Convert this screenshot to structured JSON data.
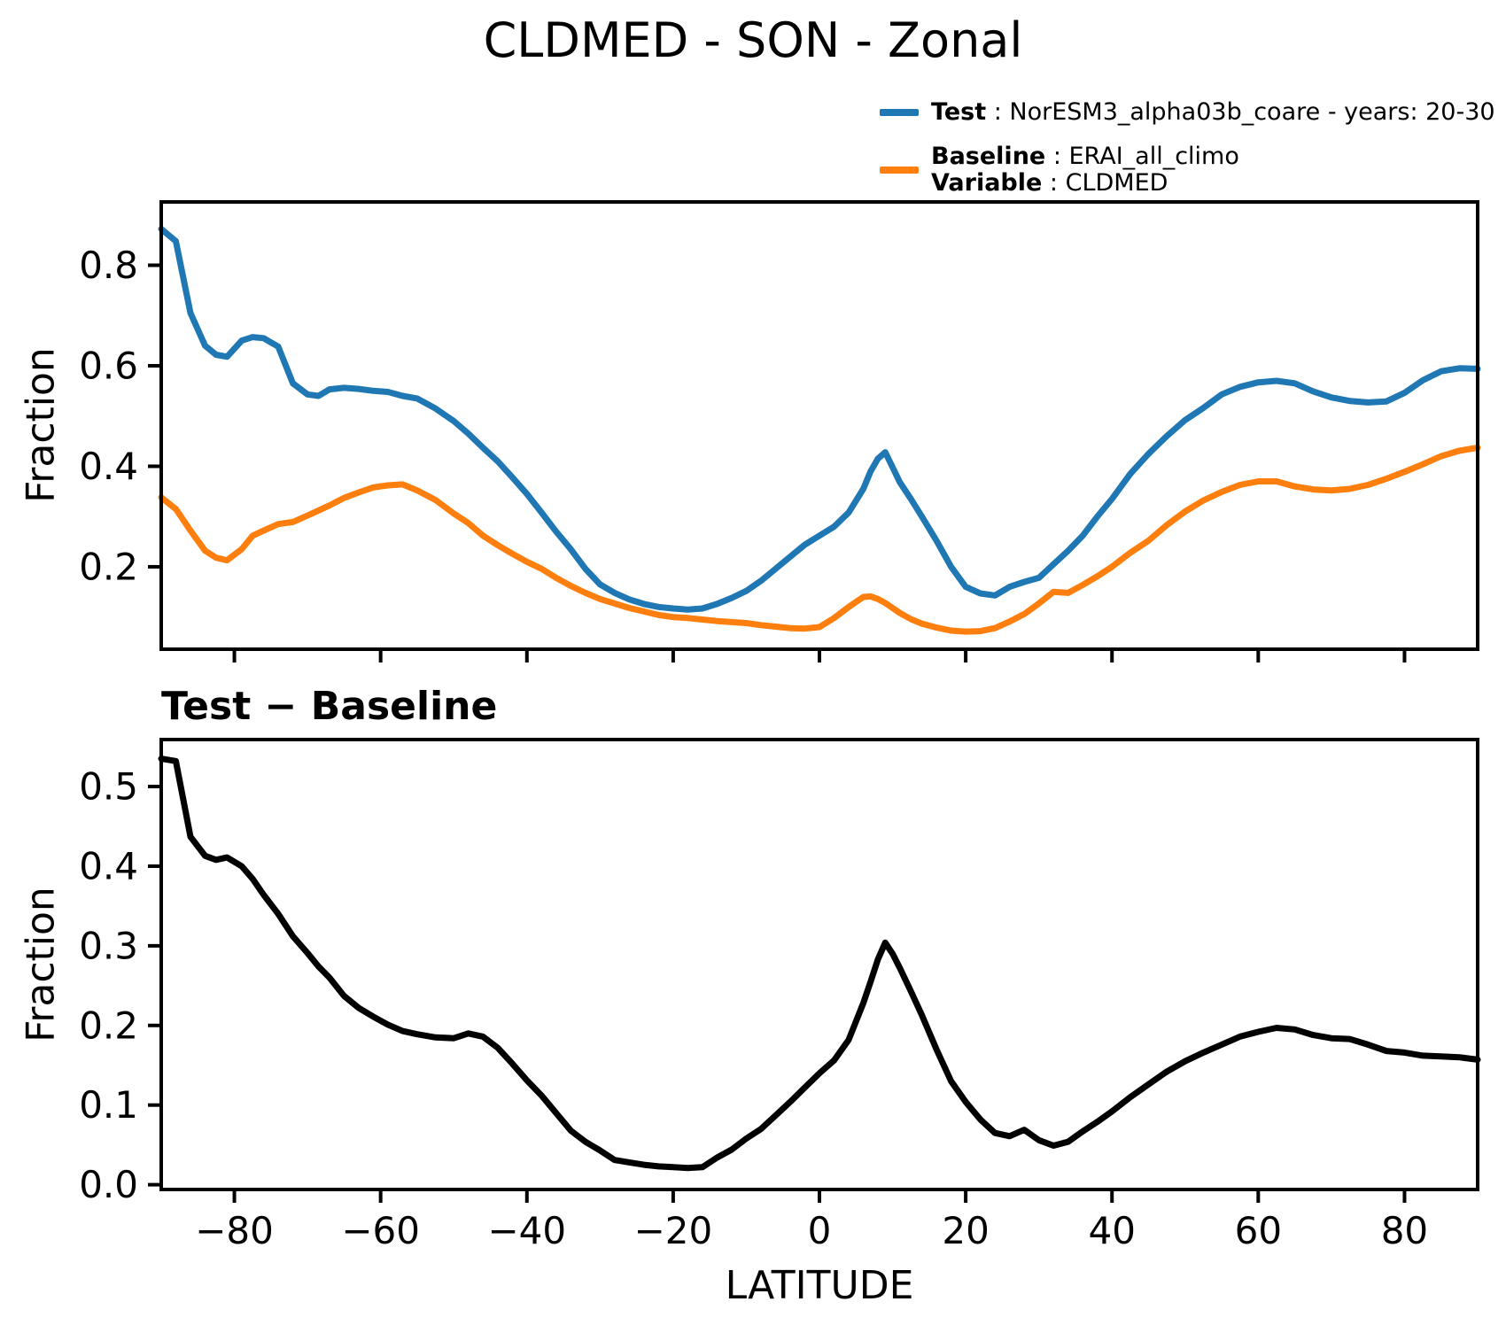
{
  "title": "CLDMED - SON - Zonal",
  "legend": {
    "test_label": "Test",
    "test_rest": " : NorESM3_alpha03b_coare - years: 20-30",
    "baseline_label": "Baseline",
    "baseline_rest": " : ERAI_all_climo",
    "variable_label": "Variable",
    "variable_rest": " : CLDMED",
    "test_color": "#1f77b4",
    "baseline_color": "#ff7f0e"
  },
  "chart_data": [
    {
      "type": "line",
      "title": "",
      "xlabel": "",
      "ylabel": "Fraction",
      "xlim": [
        -90,
        90
      ],
      "ylim": [
        0.036,
        0.926
      ],
      "grid": false,
      "legend_position": "upper right outside",
      "xticks": [
        -80,
        -60,
        -40,
        -20,
        0,
        20,
        40,
        60,
        80
      ],
      "xticklabels": [],
      "yticks": [
        0.2,
        0.4,
        0.6,
        0.8
      ],
      "yticklabels": [
        "0.2",
        "0.4",
        "0.6",
        "0.8"
      ],
      "x": [
        -90,
        -88,
        -86,
        -84,
        -82.5,
        -81,
        -79,
        -77.5,
        -76,
        -74,
        -72,
        -70,
        -68.5,
        -67,
        -65,
        -63,
        -61,
        -59,
        -57,
        -55,
        -52.5,
        -50,
        -48,
        -46,
        -44,
        -42,
        -40,
        -38,
        -36,
        -34,
        -32,
        -30,
        -28,
        -26,
        -24,
        -22,
        -20,
        -18,
        -16,
        -14,
        -12,
        -10,
        -8,
        -6,
        -4,
        -2,
        0,
        2,
        4,
        6,
        7,
        8,
        9,
        10,
        11,
        12.5,
        14,
        16,
        18,
        20,
        22,
        24,
        26,
        28,
        30,
        32,
        34,
        36,
        38,
        40,
        42.5,
        45,
        47.5,
        50,
        52.5,
        55,
        57.5,
        60,
        62.5,
        65,
        67.5,
        70,
        72.5,
        75,
        77.5,
        80,
        82.5,
        85,
        87.5,
        90
      ],
      "series": [
        {
          "name": "Test : NorESM3_alpha03b_coare - years: 20-30",
          "color": "#1f77b4",
          "values": [
            0.872,
            0.848,
            0.705,
            0.64,
            0.622,
            0.618,
            0.65,
            0.657,
            0.655,
            0.638,
            0.565,
            0.543,
            0.54,
            0.553,
            0.556,
            0.554,
            0.55,
            0.548,
            0.54,
            0.535,
            0.515,
            0.49,
            0.465,
            0.437,
            0.41,
            0.378,
            0.345,
            0.308,
            0.27,
            0.235,
            0.196,
            0.165,
            0.148,
            0.135,
            0.126,
            0.12,
            0.117,
            0.115,
            0.117,
            0.126,
            0.138,
            0.152,
            0.172,
            0.196,
            0.22,
            0.244,
            0.262,
            0.28,
            0.308,
            0.355,
            0.39,
            0.415,
            0.428,
            0.398,
            0.368,
            0.335,
            0.3,
            0.252,
            0.2,
            0.16,
            0.147,
            0.143,
            0.16,
            0.17,
            0.178,
            0.205,
            0.232,
            0.262,
            0.3,
            0.335,
            0.385,
            0.425,
            0.46,
            0.492,
            0.516,
            0.543,
            0.558,
            0.567,
            0.57,
            0.565,
            0.549,
            0.537,
            0.53,
            0.527,
            0.529,
            0.546,
            0.571,
            0.589,
            0.595,
            0.594
          ]
        },
        {
          "name": "Baseline : ERAI_all_climo",
          "color": "#ff7f0e",
          "values": [
            0.338,
            0.315,
            0.272,
            0.232,
            0.218,
            0.213,
            0.235,
            0.262,
            0.272,
            0.285,
            0.289,
            0.302,
            0.312,
            0.322,
            0.337,
            0.348,
            0.358,
            0.362,
            0.364,
            0.352,
            0.333,
            0.306,
            0.287,
            0.262,
            0.243,
            0.226,
            0.21,
            0.196,
            0.178,
            0.162,
            0.148,
            0.136,
            0.127,
            0.118,
            0.111,
            0.104,
            0.1,
            0.098,
            0.095,
            0.092,
            0.09,
            0.088,
            0.084,
            0.081,
            0.078,
            0.077,
            0.08,
            0.098,
            0.12,
            0.14,
            0.141,
            0.136,
            0.128,
            0.118,
            0.108,
            0.096,
            0.087,
            0.079,
            0.073,
            0.071,
            0.072,
            0.078,
            0.091,
            0.106,
            0.127,
            0.15,
            0.148,
            0.164,
            0.181,
            0.2,
            0.228,
            0.252,
            0.283,
            0.31,
            0.332,
            0.349,
            0.363,
            0.37,
            0.37,
            0.36,
            0.354,
            0.352,
            0.355,
            0.363,
            0.375,
            0.389,
            0.404,
            0.42,
            0.431,
            0.437
          ]
        }
      ]
    },
    {
      "type": "line",
      "title": "Test − Baseline",
      "xlabel": "LATITUDE",
      "ylabel": "Fraction",
      "xlim": [
        -90,
        90
      ],
      "ylim": [
        -0.006,
        0.559
      ],
      "grid": false,
      "xticks": [
        -80,
        -60,
        -40,
        -20,
        0,
        20,
        40,
        60,
        80
      ],
      "xticklabels": [
        "−80",
        "−60",
        "−40",
        "−20",
        "0",
        "20",
        "40",
        "60",
        "80"
      ],
      "yticks": [
        0.0,
        0.1,
        0.2,
        0.3,
        0.4,
        0.5
      ],
      "yticklabels": [
        "0.0",
        "0.1",
        "0.2",
        "0.3",
        "0.4",
        "0.5"
      ],
      "x": [
        -90,
        -88,
        -86,
        -84,
        -82.5,
        -81,
        -79,
        -77.5,
        -76,
        -74,
        -72,
        -70,
        -68.5,
        -67,
        -65,
        -63,
        -61,
        -59,
        -57,
        -55,
        -52.5,
        -50,
        -48,
        -46,
        -44,
        -42,
        -40,
        -38,
        -36,
        -34,
        -32,
        -30,
        -28,
        -26,
        -24,
        -22,
        -20,
        -18,
        -16,
        -14,
        -12,
        -10,
        -8,
        -6,
        -4,
        -2,
        0,
        2,
        4,
        6,
        7,
        8,
        9,
        10,
        11,
        12.5,
        14,
        16,
        18,
        20,
        22,
        24,
        26,
        28,
        30,
        32,
        34,
        36,
        38,
        40,
        42.5,
        45,
        47.5,
        50,
        52.5,
        55,
        57.5,
        60,
        62.5,
        65,
        67.5,
        70,
        72.5,
        75,
        77.5,
        80,
        82.5,
        85,
        87.5,
        90
      ],
      "series": [
        {
          "name": "Test − Baseline",
          "color": "#000000",
          "values": [
            0.535,
            0.532,
            0.437,
            0.413,
            0.408,
            0.411,
            0.4,
            0.384,
            0.364,
            0.34,
            0.312,
            0.291,
            0.274,
            0.26,
            0.237,
            0.222,
            0.211,
            0.201,
            0.193,
            0.189,
            0.185,
            0.184,
            0.19,
            0.186,
            0.172,
            0.152,
            0.131,
            0.112,
            0.09,
            0.068,
            0.054,
            0.043,
            0.031,
            0.028,
            0.025,
            0.023,
            0.022,
            0.021,
            0.022,
            0.034,
            0.044,
            0.058,
            0.07,
            0.087,
            0.104,
            0.122,
            0.14,
            0.156,
            0.182,
            0.228,
            0.255,
            0.283,
            0.304,
            0.29,
            0.272,
            0.243,
            0.213,
            0.17,
            0.13,
            0.104,
            0.082,
            0.065,
            0.061,
            0.069,
            0.056,
            0.049,
            0.054,
            0.067,
            0.079,
            0.092,
            0.11,
            0.126,
            0.142,
            0.155,
            0.166,
            0.176,
            0.186,
            0.192,
            0.197,
            0.195,
            0.188,
            0.184,
            0.183,
            0.176,
            0.168,
            0.166,
            0.162,
            0.161,
            0.16,
            0.157
          ]
        }
      ]
    }
  ]
}
